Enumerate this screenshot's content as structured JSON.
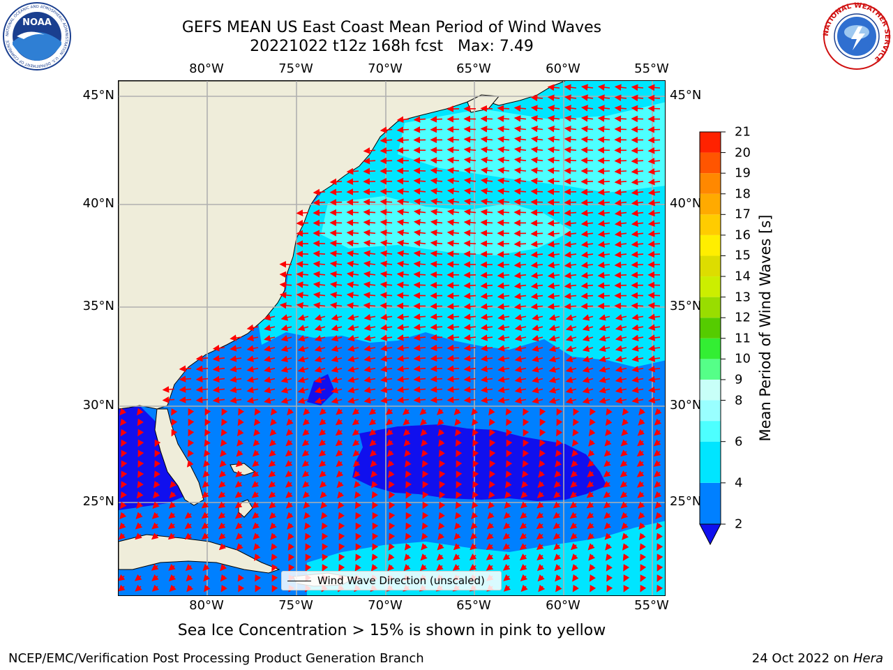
{
  "header": {
    "title_line1": "GEFS MEAN US East Coast Mean Period of Wind Waves",
    "title_line2": "20221022 t12z 168h fcst   Max: 7.49"
  },
  "map": {
    "longitude_ticks": [
      "80°W",
      "75°W",
      "70°W",
      "65°W",
      "60°W",
      "55°W"
    ],
    "latitude_ticks": [
      "45°N",
      "40°N",
      "35°N",
      "30°N",
      "25°N"
    ],
    "legend_label": "Wind Wave Direction (unscaled)",
    "colors": {
      "land": "#efedda",
      "grid": "#b0b0b0",
      "arrow": "#ff0000",
      "coast": "#000000"
    }
  },
  "chart_data": {
    "type": "heatmap",
    "title": "GEFS MEAN US East Coast Mean Period of Wind Waves",
    "subtitle": "20221022 t12z 168h fcst   Max: 7.49",
    "max_value": 7.49,
    "lon_range": [
      -85,
      -54.3
    ],
    "lat_range": [
      20.5,
      46
    ],
    "colorbar": {
      "label": "Mean Period of Wind Waves [s]",
      "ticks": [
        2,
        4,
        6,
        8,
        9,
        10,
        11,
        12,
        13,
        14,
        15,
        16,
        17,
        18,
        19,
        20,
        21
      ],
      "bounds": [
        2,
        4,
        6,
        7,
        8,
        9,
        10,
        11,
        12,
        13,
        14,
        15,
        16,
        17,
        18,
        19,
        20,
        21
      ],
      "colors": [
        "#0080ff",
        "#00e5ff",
        "#4dffff",
        "#99ffff",
        "#c8fff8",
        "#55ff88",
        "#33ee33",
        "#55cc00",
        "#99dd00",
        "#ccee00",
        "#dddd00",
        "#ffee00",
        "#ffcc00",
        "#ffaa00",
        "#ff8800",
        "#ff5500",
        "#ff2200",
        "#ee0000"
      ],
      "under_color": "#1010ee",
      "extend": "min"
    }
  },
  "footer": {
    "note": "Sea Ice Concentration > 15% is shown in pink to yellow",
    "credit_left": "NCEP/EMC/Verification Post Processing Product Generation Branch",
    "credit_right_date": "24 Oct 2022 on",
    "credit_right_machine": "Hera"
  },
  "logos": {
    "left": {
      "icon": "noaa-logo",
      "text": "NOAA",
      "ring_text": "NATIONAL OCEANIC AND ATMOSPHERIC ADMINISTRATION · U.S. DEPARTMENT OF COMMERCE"
    },
    "right": {
      "icon": "nws-logo",
      "ring_text": "NATIONAL WEATHER SERVICE"
    }
  }
}
